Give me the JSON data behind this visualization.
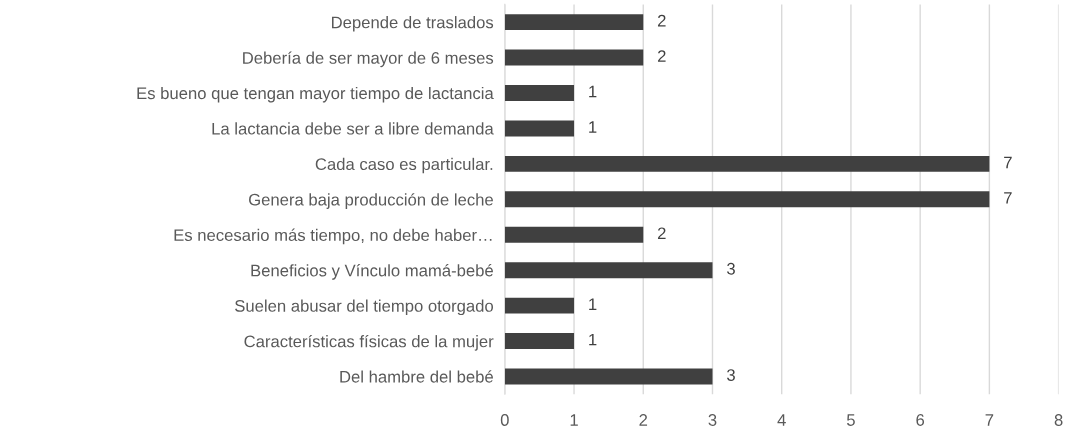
{
  "chart_data": {
    "type": "bar",
    "orientation": "horizontal",
    "categories": [
      "Depende de traslados",
      "Debería de ser mayor de 6 meses",
      "Es bueno que tengan mayor tiempo de lactancia",
      "La lactancia debe ser a libre demanda",
      "Cada caso es particular.",
      "Genera baja producción de leche",
      "Es necesario más tiempo, no debe haber…",
      "Beneficios y Vínculo mamá-bebé",
      "Suelen abusar del tiempo otorgado",
      "Características físicas de la mujer",
      "Del hambre del bebé"
    ],
    "values": [
      2,
      2,
      1,
      1,
      7,
      7,
      2,
      3,
      1,
      1,
      3
    ],
    "color": "#404040",
    "xlim": [
      0,
      8
    ],
    "xticks": [
      0,
      1,
      2,
      3,
      4,
      5,
      6,
      7,
      8
    ],
    "grid": "x",
    "data_labels": true
  }
}
